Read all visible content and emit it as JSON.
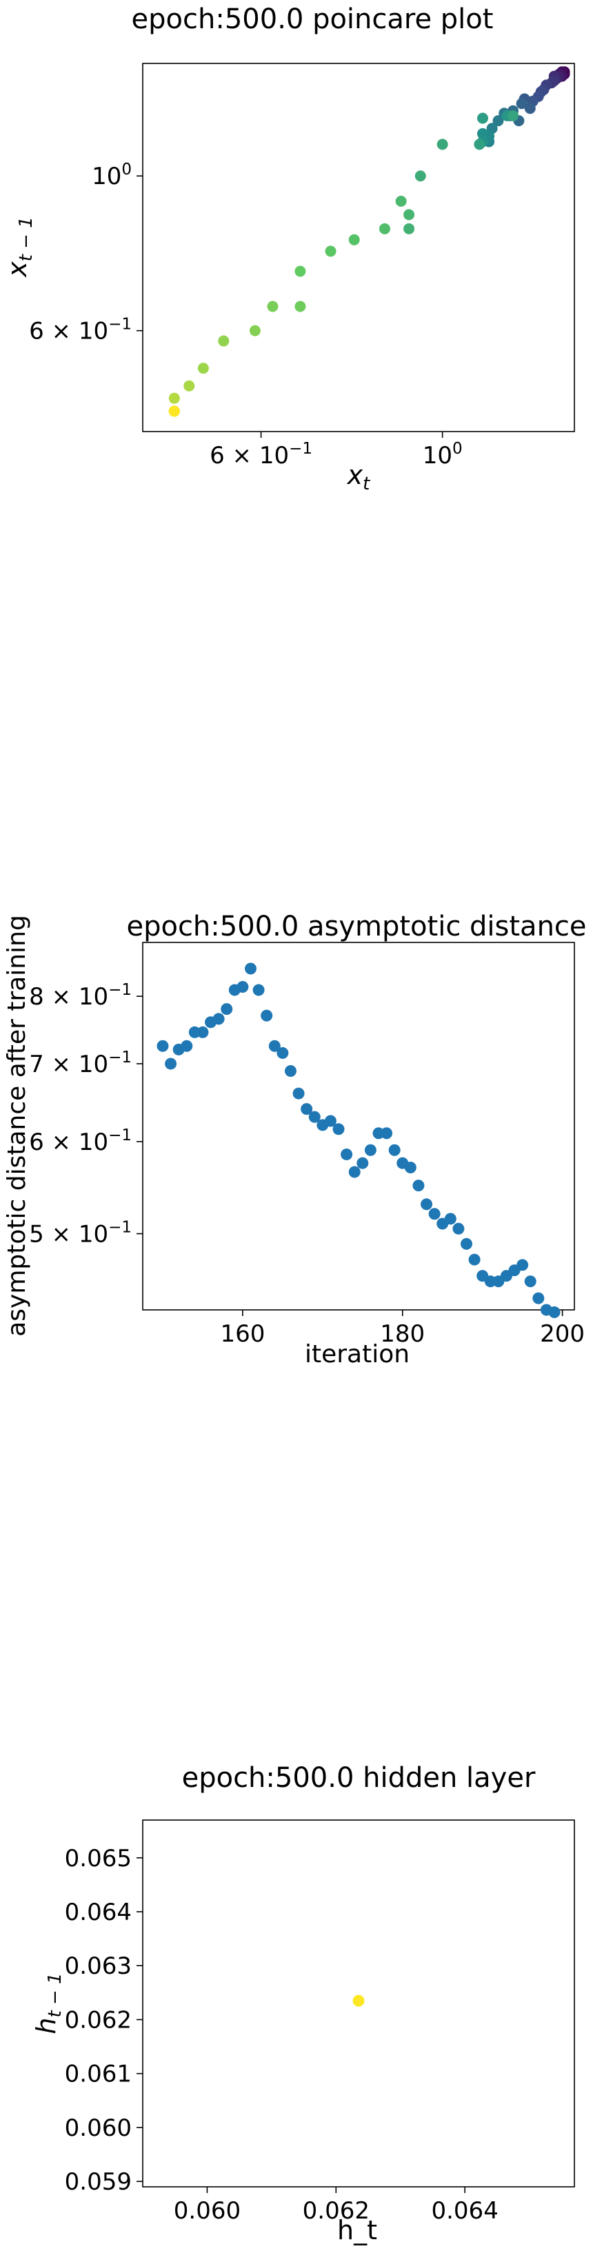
{
  "chart_data": [
    {
      "type": "scatter",
      "title": "epoch:500.0 poincare plot",
      "xlabel": "x_t",
      "ylabel": "x_{t-1}",
      "xscale": "log",
      "yscale": "log",
      "xlim": [
        0.43,
        1.45
      ],
      "ylim": [
        0.43,
        1.45
      ],
      "x_ticks": [
        {
          "value": 0.6,
          "base": "6 × 10",
          "exp": "−1"
        },
        {
          "value": 1.0,
          "base": "10",
          "exp": "0"
        }
      ],
      "y_ticks": [
        {
          "value": 0.6,
          "base": "6 × 10",
          "exp": "−1"
        },
        {
          "value": 1.0,
          "base": "10",
          "exp": "0"
        }
      ],
      "colormap": "viridis",
      "points": [
        [
          1.41,
          1.41
        ],
        [
          1.41,
          1.4
        ],
        [
          1.4,
          1.41
        ],
        [
          1.4,
          1.39
        ],
        [
          1.39,
          1.4
        ],
        [
          1.39,
          1.39
        ],
        [
          1.38,
          1.38
        ],
        [
          1.37,
          1.39
        ],
        [
          1.37,
          1.37
        ],
        [
          1.36,
          1.36
        ],
        [
          1.34,
          1.35
        ],
        [
          1.33,
          1.33
        ],
        [
          1.32,
          1.32
        ],
        [
          1.31,
          1.3
        ],
        [
          1.29,
          1.28
        ],
        [
          1.26,
          1.29
        ],
        [
          1.28,
          1.25
        ],
        [
          1.25,
          1.27
        ],
        [
          1.24,
          1.2
        ],
        [
          1.22,
          1.24
        ],
        [
          1.21,
          1.22
        ],
        [
          1.19,
          1.23
        ],
        [
          1.17,
          1.2
        ],
        [
          1.15,
          1.17
        ],
        [
          1.14,
          1.12
        ],
        [
          1.14,
          1.14
        ],
        [
          1.12,
          1.15
        ],
        [
          1.12,
          1.12
        ],
        [
          1.2,
          1.22
        ],
        [
          1.12,
          1.21
        ],
        [
          1.11,
          1.11
        ],
        [
          1.22,
          1.22
        ],
        [
          1.0,
          1.11
        ],
        [
          0.94,
          1.0
        ],
        [
          0.91,
          0.84
        ],
        [
          0.91,
          0.88
        ],
        [
          0.89,
          0.92
        ],
        [
          0.85,
          0.84
        ],
        [
          0.78,
          0.81
        ],
        [
          0.73,
          0.78
        ],
        [
          0.67,
          0.73
        ],
        [
          0.67,
          0.65
        ],
        [
          0.62,
          0.65
        ],
        [
          0.59,
          0.6
        ],
        [
          0.54,
          0.58
        ],
        [
          0.51,
          0.53
        ],
        [
          0.49,
          0.5
        ],
        [
          0.47,
          0.48
        ],
        [
          0.47,
          0.46
        ],
        [
          0.47,
          0.46
        ],
        [
          0.47,
          0.46
        ],
        [
          0.47,
          0.46
        ],
        [
          0.47,
          0.46
        ],
        [
          0.47,
          0.46
        ]
      ]
    },
    {
      "type": "scatter",
      "title": "epoch:500.0 asymptotic distance",
      "xlabel": "iteration",
      "ylabel": "asymptotic distance after training",
      "xscale": "linear",
      "yscale": "log",
      "xlim": [
        147.5,
        201.5
      ],
      "ylim": [
        0.43,
        0.89
      ],
      "x_ticks": [
        {
          "value": 160,
          "label": "160"
        },
        {
          "value": 180,
          "label": "180"
        },
        {
          "value": 200,
          "label": "200"
        }
      ],
      "y_ticks": [
        {
          "value": 0.8,
          "base": "8 × 10",
          "exp": "−1"
        },
        {
          "value": 0.7,
          "base": "7 × 10",
          "exp": "−1"
        },
        {
          "value": 0.6,
          "base": "6 × 10",
          "exp": "−1"
        },
        {
          "value": 0.5,
          "base": "5 × 10",
          "exp": "−1"
        }
      ],
      "color": "#1f77b4",
      "x": [
        150,
        151,
        152,
        153,
        154,
        155,
        156,
        157,
        158,
        159,
        160,
        161,
        162,
        163,
        164,
        165,
        166,
        167,
        168,
        169,
        170,
        171,
        172,
        173,
        174,
        175,
        176,
        177,
        178,
        179,
        180,
        181,
        182,
        183,
        184,
        185,
        186,
        187,
        188,
        189,
        190,
        191,
        192,
        193,
        194,
        195,
        196,
        197,
        198,
        199
      ],
      "y": [
        0.725,
        0.7,
        0.72,
        0.725,
        0.745,
        0.745,
        0.76,
        0.765,
        0.78,
        0.81,
        0.815,
        0.845,
        0.81,
        0.77,
        0.725,
        0.715,
        0.69,
        0.66,
        0.64,
        0.63,
        0.62,
        0.625,
        0.615,
        0.585,
        0.565,
        0.575,
        0.59,
        0.61,
        0.61,
        0.59,
        0.575,
        0.57,
        0.55,
        0.53,
        0.52,
        0.51,
        0.515,
        0.505,
        0.49,
        0.475,
        0.46,
        0.455,
        0.455,
        0.46,
        0.465,
        0.47,
        0.455,
        0.44,
        0.43,
        0.428
      ]
    },
    {
      "type": "scatter",
      "title": "epoch:500.0 hidden layer",
      "xlabel": "h_t",
      "ylabel": "h_{t-1}",
      "xscale": "linear",
      "yscale": "linear",
      "xlim": [
        0.059,
        0.0657
      ],
      "ylim": [
        0.0589,
        0.0657
      ],
      "x_ticks": [
        {
          "value": 0.06,
          "label": "0.060"
        },
        {
          "value": 0.062,
          "label": "0.062"
        },
        {
          "value": 0.064,
          "label": "0.064"
        }
      ],
      "y_ticks": [
        {
          "value": 0.059,
          "label": "0.059"
        },
        {
          "value": 0.06,
          "label": "0.060"
        },
        {
          "value": 0.061,
          "label": "0.061"
        },
        {
          "value": 0.062,
          "label": "0.062"
        },
        {
          "value": 0.063,
          "label": "0.063"
        },
        {
          "value": 0.064,
          "label": "0.064"
        },
        {
          "value": 0.065,
          "label": "0.065"
        }
      ],
      "color": "#fde725",
      "x": [
        0.06235
      ],
      "y": [
        0.06235
      ]
    }
  ]
}
